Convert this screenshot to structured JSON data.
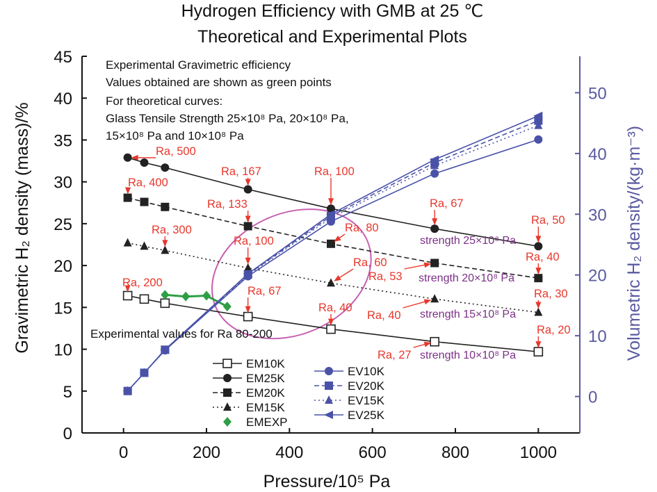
{
  "chart_data": {
    "type": "line",
    "title": [
      "Hydrogen Efficiency with GMB at 25 ℃",
      "Theoretical and Experimental Plots"
    ],
    "xlabel": "Pressure/10⁵ Pa",
    "ylabel_left": "Gravimetric H₂ density (mass)/%",
    "ylabel_right": "Volumetric H₂ density/(kg·m⁻³)",
    "xlim": [
      -100,
      1100
    ],
    "ylim_left": [
      0,
      45
    ],
    "ylim_right": [
      -6,
      56
    ],
    "xticks": [
      0,
      200,
      400,
      600,
      800,
      1000
    ],
    "yticks_left": [
      0,
      5,
      10,
      15,
      20,
      25,
      30,
      35,
      40,
      45
    ],
    "yticks_right": [
      0,
      10,
      20,
      30,
      40,
      50
    ],
    "grid": false,
    "notes": [
      "Experimental Gravimetric efficiency",
      "Values obtained are shown as green points",
      "For theoretical curves:",
      "Glass Tensile Strength 25×10⁸ Pa, 20×10⁸ Pa,",
      "15×10⁸ Pa and 10×10⁸ Pa"
    ],
    "experimental_label": "Experimental values for Ra 80-200",
    "series": [
      {
        "name": "EM10K",
        "axis": "left",
        "color": "#222222",
        "line": "solid",
        "marker": "square-open",
        "x": [
          10,
          50,
          100,
          300,
          500,
          750,
          1000
        ],
        "y": [
          16.4,
          16.0,
          15.5,
          13.9,
          12.4,
          10.9,
          9.7
        ]
      },
      {
        "name": "EM25K",
        "axis": "left",
        "color": "#222222",
        "line": "solid",
        "marker": "circle",
        "x": [
          10,
          50,
          100,
          300,
          500,
          750,
          1000
        ],
        "y": [
          32.9,
          32.3,
          31.7,
          29.1,
          26.8,
          24.4,
          22.3
        ]
      },
      {
        "name": "EM20K",
        "axis": "left",
        "color": "#222222",
        "line": "dash",
        "marker": "square",
        "x": [
          10,
          50,
          100,
          300,
          500,
          750,
          1000
        ],
        "y": [
          28.1,
          27.6,
          27.0,
          24.7,
          22.6,
          20.3,
          18.5
        ]
      },
      {
        "name": "EM15K",
        "axis": "left",
        "color": "#222222",
        "line": "dot",
        "marker": "triangle",
        "x": [
          10,
          50,
          100,
          300,
          500,
          750,
          1000
        ],
        "y": [
          22.7,
          22.3,
          21.8,
          19.7,
          17.9,
          16.0,
          14.4
        ]
      },
      {
        "name": "EMEXP",
        "axis": "left",
        "color": "#2e9e44",
        "line": "solid",
        "marker": "diamond",
        "x": [
          100,
          150,
          200,
          250
        ],
        "y": [
          16.5,
          16.3,
          16.4,
          15.1
        ]
      },
      {
        "name": "EV10K",
        "axis": "right",
        "color": "#4a52a8",
        "line": "solid",
        "marker": "circle",
        "x": [
          10,
          50,
          100,
          300,
          500,
          750,
          1000
        ],
        "y": [
          0.9,
          3.9,
          7.6,
          19.8,
          28.8,
          36.7,
          42.3
        ]
      },
      {
        "name": "EV20K",
        "axis": "right",
        "color": "#4a52a8",
        "line": "dash",
        "marker": "square",
        "x": [
          10,
          50,
          100,
          300,
          500,
          750,
          1000
        ],
        "y": [
          0.9,
          3.9,
          7.7,
          20.1,
          29.7,
          38.5,
          45.4
        ]
      },
      {
        "name": "EV15K",
        "axis": "right",
        "color": "#4a52a8",
        "line": "dot",
        "marker": "triangle",
        "x": [
          10,
          50,
          100,
          300,
          500,
          750,
          1000
        ],
        "y": [
          0.9,
          3.9,
          7.6,
          20.0,
          29.4,
          38.0,
          44.6
        ]
      },
      {
        "name": "EV25K",
        "axis": "right",
        "color": "#4a52a8",
        "line": "solid",
        "marker": "triangle-left",
        "x": [
          10,
          50,
          100,
          300,
          500,
          750,
          1000
        ],
        "y": [
          0.9,
          3.9,
          7.7,
          20.2,
          30.0,
          39.0,
          46.2
        ]
      }
    ],
    "legend_left": [
      "EM10K",
      "EM25K",
      "EM20K",
      "EM15K",
      "EMEXP"
    ],
    "legend_right": [
      "EV10K",
      "EV20K",
      "EV15K",
      "EV25K"
    ],
    "ra_annotations": [
      {
        "text": "Ra, 500",
        "x": 10,
        "y": 32.9
      },
      {
        "text": "Ra, 400",
        "x": 10,
        "y": 28.1
      },
      {
        "text": "Ra, 300",
        "x": 100,
        "y": 21.8
      },
      {
        "text": "Ra, 200",
        "x": 10,
        "y": 16.4
      },
      {
        "text": "Ra, 167",
        "x": 300,
        "y": 29.1
      },
      {
        "text": "Ra, 133",
        "x": 300,
        "y": 24.7
      },
      {
        "text": "Ra, 100",
        "x": 300,
        "y": 19.7
      },
      {
        "text": "Ra, 67",
        "x": 300,
        "y": 13.9
      },
      {
        "text": "Ra, 100",
        "x": 500,
        "y": 26.8
      },
      {
        "text": "Ra, 80",
        "x": 500,
        "y": 22.6
      },
      {
        "text": "Ra, 60",
        "x": 500,
        "y": 17.9
      },
      {
        "text": "Ra, 40",
        "x": 500,
        "y": 12.4
      },
      {
        "text": "Ra, 67",
        "x": 750,
        "y": 24.4
      },
      {
        "text": "Ra, 53",
        "x": 750,
        "y": 20.3
      },
      {
        "text": "Ra, 40",
        "x": 750,
        "y": 16.0
      },
      {
        "text": "Ra, 27",
        "x": 750,
        "y": 10.9
      },
      {
        "text": "Ra, 50",
        "x": 1000,
        "y": 22.3
      },
      {
        "text": "Ra, 40",
        "x": 1000,
        "y": 18.5
      },
      {
        "text": "Ra, 30",
        "x": 1000,
        "y": 14.4
      },
      {
        "text": "Ra, 20",
        "x": 1000,
        "y": 9.7
      }
    ],
    "strength_labels": [
      "strength 25×10⁸ Pa",
      "strength 20×10⁸ Pa",
      "strength 15×10⁸ Pa",
      "strength 10×10⁸ Pa"
    ]
  }
}
